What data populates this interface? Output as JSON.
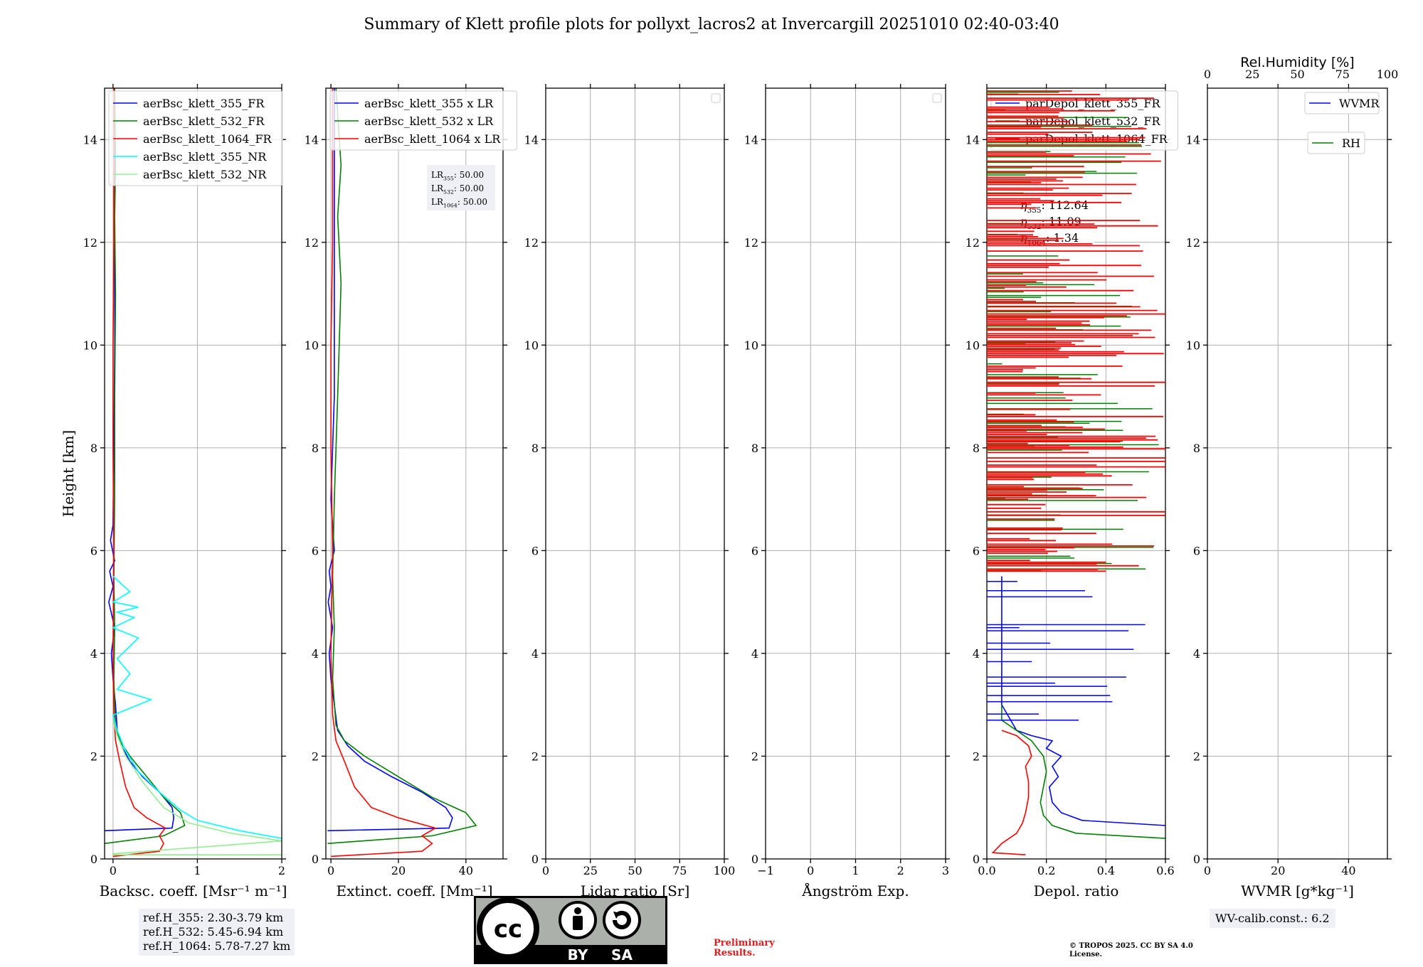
{
  "title": "Summary of Klett profile plots for pollyxt_lacros2 at Invercargill 20251010 02:40-03:40",
  "ylabel": "Height [km]",
  "ref_heights": [
    "ref.H_355: 2.30-3.79 km",
    "ref.H_532: 5.45-6.94 km",
    "ref.H_1064: 5.78-7.27 km"
  ],
  "wv_calib": "WV-calib.const.: 6.2",
  "preliminary": "Preliminary Results.",
  "copyright": "© TROPOS 2025. CC BY SA 4.0 License.",
  "license_badge": {
    "cc": "cc",
    "by": "BY",
    "sa": "SA"
  },
  "colors": {
    "b355": "#0000ff",
    "g532": "#008000",
    "r1064": "#ff0000",
    "c355nr": "#00ffff",
    "lg532nr": "#90ee90",
    "grid": "#b0b0b0"
  },
  "chart_data": [
    {
      "type": "line",
      "title": "",
      "xlabel": "Backsc. coeff. [Msr⁻¹ m⁻¹]",
      "ylabel": "Height [km]",
      "xlim": [
        -0.1,
        2
      ],
      "ylim": [
        0,
        15
      ],
      "xticks": [
        0,
        1,
        2
      ],
      "yticks": [
        0,
        2,
        4,
        6,
        8,
        10,
        12,
        14
      ],
      "legend": [
        "aerBsc_klett_355_FR",
        "aerBsc_klett_532_FR",
        "aerBsc_klett_1064_FR",
        "aerBsc_klett_355_NR",
        "aerBsc_klett_532_NR"
      ],
      "series": [
        {
          "name": "aerBsc_klett_355_FR",
          "color": "#0000ff",
          "x": [
            -0.1,
            0.7,
            0.72,
            0.7,
            0.55,
            0.35,
            0.2,
            0.1,
            0.05,
            0.03,
            0.0,
            -0.02,
            0.02,
            -0.05,
            0.0,
            -0.04,
            0.02,
            -0.03,
            0.0,
            0.01,
            0.02,
            0.02,
            0.02
          ],
          "y": [
            0.55,
            0.6,
            0.8,
            1.0,
            1.3,
            1.6,
            1.9,
            2.2,
            2.5,
            3.0,
            3.5,
            4.0,
            4.5,
            5.0,
            5.3,
            5.6,
            5.8,
            6.2,
            6.5,
            8.0,
            10.0,
            12.0,
            15.0
          ]
        },
        {
          "name": "aerBsc_klett_532_FR",
          "color": "#008000",
          "x": [
            -0.1,
            0.6,
            0.85,
            0.8,
            0.6,
            0.4,
            0.2,
            0.08,
            0.03,
            0.01,
            0.02,
            0.01,
            0.02,
            0.02,
            0.03,
            0.02,
            0.03,
            0.02
          ],
          "y": [
            0.3,
            0.45,
            0.65,
            0.9,
            1.2,
            1.6,
            2.0,
            2.3,
            2.6,
            3.5,
            4.5,
            5.5,
            7.0,
            9.0,
            11.0,
            12.5,
            13.5,
            15.0
          ]
        },
        {
          "name": "aerBsc_klett_1064_FR",
          "color": "#ff0000",
          "x": [
            0.0,
            0.55,
            0.6,
            0.55,
            0.62,
            0.4,
            0.25,
            0.15,
            0.08,
            0.03,
            0.01,
            0.0,
            0.01,
            0.0,
            0.0,
            0.01,
            0.01
          ],
          "y": [
            0.05,
            0.15,
            0.3,
            0.45,
            0.6,
            0.8,
            1.0,
            1.4,
            1.9,
            2.3,
            2.8,
            4.0,
            6.0,
            8.0,
            10.0,
            12.0,
            15.0
          ]
        },
        {
          "name": "aerBsc_klett_355_NR",
          "color": "#00ffff",
          "x": [
            2.0,
            1.5,
            1.0,
            0.8,
            0.55,
            0.3,
            0.15,
            0.05,
            0.0,
            0.45,
            0.05,
            0.2,
            0.05,
            0.3,
            0.0,
            0.25,
            0.05,
            0.3,
            0.0,
            0.2,
            0.0
          ],
          "y": [
            0.4,
            0.55,
            0.75,
            0.95,
            1.3,
            1.7,
            2.1,
            2.5,
            2.8,
            3.1,
            3.3,
            3.6,
            3.9,
            4.3,
            4.5,
            4.7,
            4.8,
            4.9,
            5.0,
            5.2,
            5.5
          ]
        },
        {
          "name": "aerBsc_klett_532_NR",
          "color": "#90ee90",
          "x": [
            2.0,
            0.0,
            0.0,
            2.0,
            1.4,
            0.9,
            0.6,
            0.35,
            0.15,
            0.05,
            0.0
          ],
          "y": [
            0.08,
            0.08,
            0.1,
            0.35,
            0.5,
            0.7,
            1.0,
            1.5,
            2.0,
            2.4,
            2.7
          ]
        }
      ]
    },
    {
      "type": "line",
      "title": "",
      "xlabel": "Extinct. coeff. [Mm⁻¹]",
      "xlim": [
        -1.5,
        51
      ],
      "ylim": [
        0,
        15
      ],
      "xticks": [
        0,
        20,
        40
      ],
      "yticks": [
        0,
        2,
        4,
        6,
        8,
        10,
        12,
        14
      ],
      "legend": [
        "aerBsc_klett_355 x LR",
        "aerBsc_klett_532 x LR",
        "aerBsc_klett_1064 x LR"
      ],
      "lidar_ratio_text": [
        "LR355: 50.00",
        "LR532: 50.00",
        "LR1064: 50.00"
      ],
      "series": [
        {
          "name": "aerBsc_klett_355 x LR",
          "color": "#0000ff",
          "x": [
            -1,
            35,
            36,
            34,
            27,
            18,
            10,
            5,
            2,
            1,
            0,
            -0.5,
            0.5,
            -0.8,
            0,
            -0.5,
            1,
            0,
            1,
            1,
            1
          ],
          "y": [
            0.55,
            0.6,
            0.8,
            1.0,
            1.3,
            1.6,
            1.9,
            2.2,
            2.5,
            3.0,
            3.5,
            4.0,
            4.5,
            5.0,
            5.3,
            5.6,
            6.0,
            7.0,
            9.0,
            12.0,
            15.0
          ]
        },
        {
          "name": "aerBsc_klett_532 x LR",
          "color": "#008000",
          "x": [
            -1,
            30,
            43,
            40,
            30,
            20,
            10,
            4,
            1.5,
            0.5,
            1,
            0.5,
            1,
            2,
            3,
            2,
            3,
            2,
            1.5
          ],
          "y": [
            0.3,
            0.45,
            0.65,
            0.9,
            1.2,
            1.6,
            2.0,
            2.3,
            2.6,
            3.5,
            4.5,
            5.5,
            7.0,
            9.0,
            11.2,
            12.5,
            13.5,
            14.5,
            15.0
          ]
        },
        {
          "name": "aerBsc_klett_1064 x LR",
          "color": "#ff0000",
          "x": [
            0,
            27,
            30,
            27,
            31,
            20,
            12,
            7,
            4,
            1.5,
            0.5,
            0,
            0.5,
            0,
            0,
            0.5,
            0.5
          ],
          "y": [
            0.05,
            0.15,
            0.3,
            0.45,
            0.6,
            0.8,
            1.0,
            1.4,
            1.9,
            2.3,
            2.8,
            4.0,
            6.0,
            8.0,
            10.0,
            12.0,
            15.0
          ]
        }
      ]
    },
    {
      "type": "line",
      "title": "",
      "xlabel": "Lidar ratio [Sr]",
      "xlim": [
        0,
        100
      ],
      "ylim": [
        0,
        15
      ],
      "xticks": [
        0,
        25,
        50,
        75,
        100
      ],
      "yticks": [
        0,
        2,
        4,
        6,
        8,
        10,
        12,
        14
      ],
      "series": []
    },
    {
      "type": "line",
      "title": "",
      "xlabel": "Ångström Exp.",
      "xlim": [
        -1,
        3
      ],
      "ylim": [
        0,
        15
      ],
      "xticks": [
        -1,
        0,
        1,
        2,
        3
      ],
      "yticks": [
        0,
        2,
        4,
        6,
        8,
        10,
        12,
        14
      ],
      "series": []
    },
    {
      "type": "line",
      "title": "",
      "xlabel": "Depol. ratio",
      "xlim": [
        0,
        0.6
      ],
      "ylim": [
        0,
        15
      ],
      "xticks": [
        0.0,
        0.2,
        0.4,
        0.6
      ],
      "yticks": [
        0,
        2,
        4,
        6,
        8,
        10,
        12,
        14
      ],
      "legend": [
        "parDepol_klett_355_FR",
        "parDepol_klett_532_FR",
        "parDepol_klett_1064_FR"
      ],
      "eta_text": [
        "η355: 112.64",
        "η532: 11.09",
        "η1064: 1.34"
      ],
      "series": [
        {
          "name": "parDepol_klett_355_FR",
          "color": "#0000ff",
          "x": [
            0.6,
            0.32,
            0.25,
            0.22,
            0.21,
            0.24,
            0.22,
            0.25,
            0.2,
            0.22,
            0.15,
            0.1,
            0.08,
            0.05,
            0.05
          ],
          "y": [
            0.65,
            0.75,
            0.9,
            1.1,
            1.4,
            1.6,
            1.8,
            2.0,
            2.15,
            2.3,
            2.4,
            2.5,
            2.7,
            3.0,
            5.5
          ]
        },
        {
          "name": "parDepol_klett_532_FR",
          "color": "#008000",
          "x": [
            0.6,
            0.3,
            0.22,
            0.19,
            0.18,
            0.19,
            0.2,
            0.19,
            0.15,
            0.1,
            0.05,
            0.05
          ],
          "y": [
            0.4,
            0.5,
            0.65,
            0.85,
            1.1,
            1.4,
            1.7,
            2.0,
            2.3,
            2.5,
            2.7,
            3.0
          ]
        },
        {
          "name": "parDepol_klett_1064_FR",
          "color": "#ff0000",
          "x": [
            0.13,
            0.02,
            0.05,
            0.1,
            0.12,
            0.13,
            0.14,
            0.14,
            0.13,
            0.15,
            0.14,
            0.1,
            0.05
          ],
          "y": [
            0.08,
            0.12,
            0.3,
            0.5,
            0.7,
            0.9,
            1.2,
            1.5,
            1.8,
            2.0,
            2.2,
            2.4,
            2.5
          ]
        }
      ]
    },
    {
      "type": "line",
      "title": "",
      "xlabel": "WVMR [g*kg⁻¹]",
      "xlim": [
        0,
        51
      ],
      "ylim": [
        0,
        15
      ],
      "xticks": [
        0,
        20,
        40
      ],
      "yticks": [
        0,
        2,
        4,
        6,
        8,
        10,
        12,
        14
      ],
      "top_axis": {
        "label": "Rel.Humidity [%]",
        "xlim": [
          0,
          100
        ],
        "xticks": [
          0,
          25,
          50,
          75,
          100
        ]
      },
      "legend": [
        "WVMR",
        "RH"
      ],
      "series": []
    }
  ]
}
